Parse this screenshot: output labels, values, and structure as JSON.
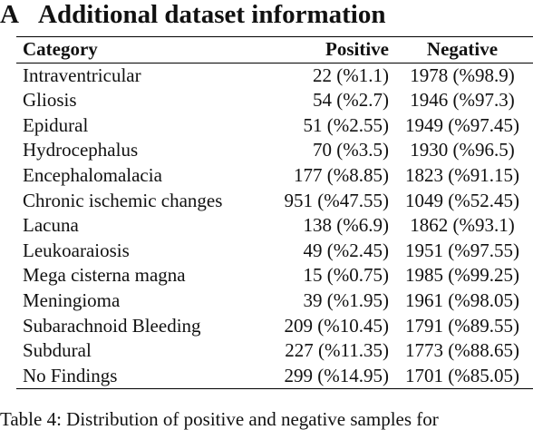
{
  "section": {
    "number": "A",
    "title": "Additional dataset information"
  },
  "table": {
    "header": [
      "Category",
      "Positive",
      "Negative"
    ],
    "rows": [
      [
        "Intraventricular",
        "22 (%1.1)",
        "1978 (%98.9)"
      ],
      [
        "Gliosis",
        "54 (%2.7)",
        "1946 (%97.3)"
      ],
      [
        "Epidural",
        "51 (%2.55)",
        "1949 (%97.45)"
      ],
      [
        "Hydrocephalus",
        "70 (%3.5)",
        "1930 (%96.5)"
      ],
      [
        "Encephalomalacia",
        "177 (%8.85)",
        "1823 (%91.15)"
      ],
      [
        "Chronic ischemic changes",
        "951 (%47.55)",
        "1049 (%52.45)"
      ],
      [
        "Lacuna",
        "138 (%6.9)",
        "1862 (%93.1)"
      ],
      [
        "Leukoaraiosis",
        "49 (%2.45)",
        "1951 (%97.55)"
      ],
      [
        "Mega cisterna magna",
        "15 (%0.75)",
        "1985 (%99.25)"
      ],
      [
        "Meningioma",
        "39 (%1.95)",
        "1961 (%98.05)"
      ],
      [
        "Subarachnoid Bleeding",
        "209 (%10.45)",
        "1791 (%89.55)"
      ],
      [
        "Subdural",
        "227 (%11.35)",
        "1773 (%88.65)"
      ],
      [
        "No Findings",
        "299 (%14.95)",
        "1701 (%85.05)"
      ]
    ]
  },
  "caption": "Table 4: Distribution of positive and negative samples for"
}
